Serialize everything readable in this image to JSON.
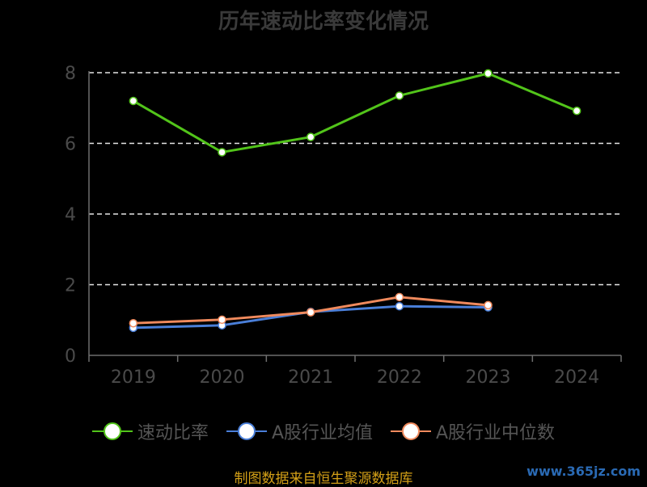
{
  "chart_data": {
    "type": "line",
    "title": "历年速动比率变化情况",
    "categories": [
      "2019",
      "2020",
      "2021",
      "2022",
      "2023",
      "2024"
    ],
    "ylim": [
      0,
      8
    ],
    "yticks": [
      0,
      2,
      4,
      6,
      8
    ],
    "grid": true,
    "legend_position": "bottom",
    "series": [
      {
        "name": "速动比率",
        "color": "#52c41a",
        "values": [
          7.2,
          5.75,
          6.18,
          7.35,
          7.98,
          6.92
        ]
      },
      {
        "name": "A股行业均值",
        "color": "#4a7fd9",
        "values": [
          0.78,
          0.85,
          1.23,
          1.39,
          1.36,
          null
        ]
      },
      {
        "name": "A股行业中位数",
        "color": "#f08a5d",
        "values": [
          0.91,
          1.01,
          1.22,
          1.65,
          1.42,
          null
        ]
      }
    ]
  },
  "source": "制图数据来自恒生聚源数据库",
  "watermark": "www.365jz.com"
}
